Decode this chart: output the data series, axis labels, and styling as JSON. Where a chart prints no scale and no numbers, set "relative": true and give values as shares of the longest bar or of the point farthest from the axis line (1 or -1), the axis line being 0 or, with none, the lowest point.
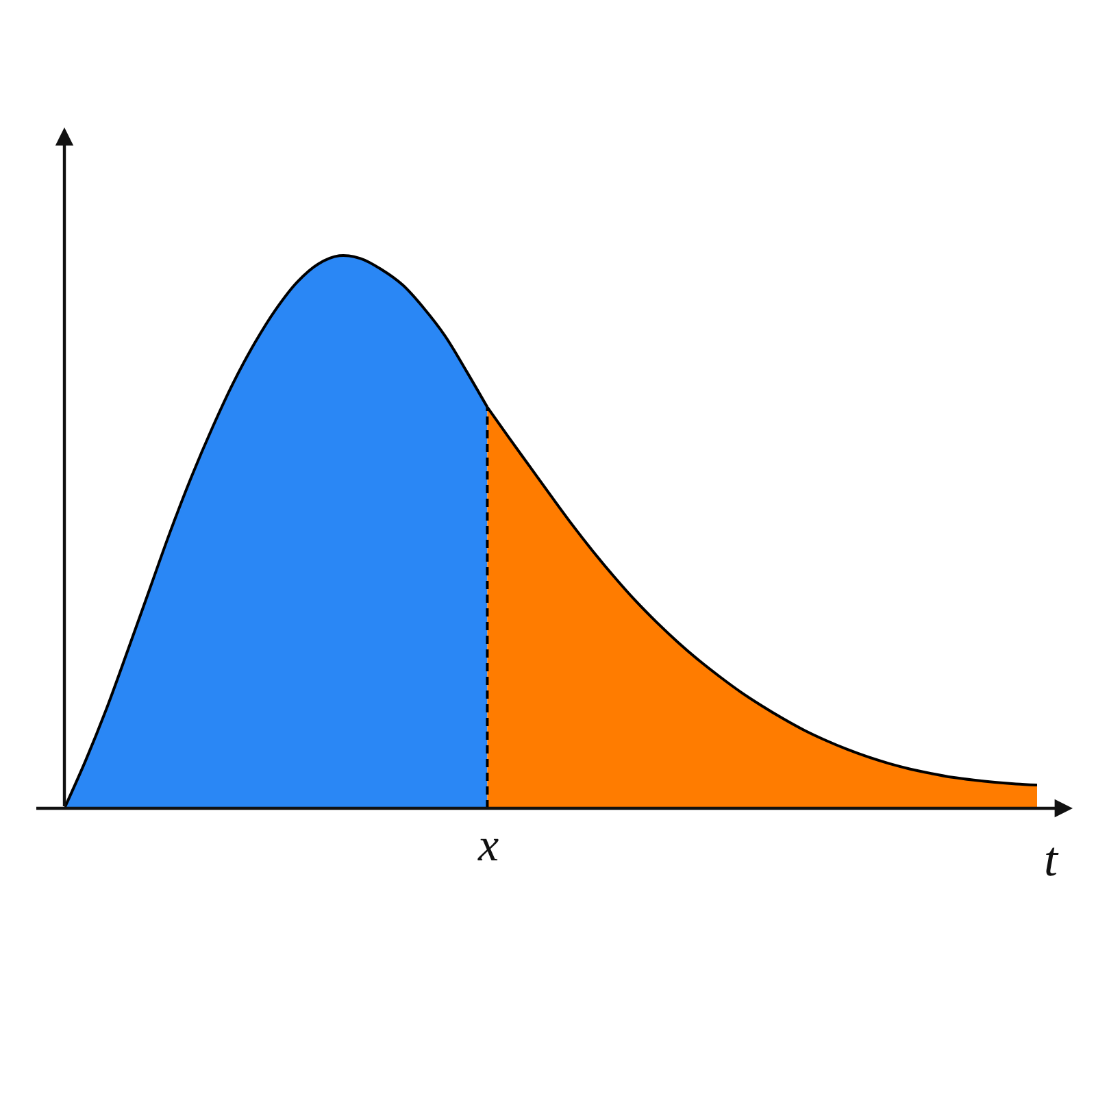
{
  "chart_data": {
    "type": "area",
    "relative": true,
    "xlabel": "t",
    "categories": [
      null,
      null,
      null,
      null,
      null,
      null,
      null,
      null,
      null,
      null,
      null,
      null,
      null,
      null,
      null,
      null,
      null,
      null,
      null,
      null,
      null,
      null,
      null,
      null,
      null,
      null,
      null,
      null,
      null,
      null,
      null,
      null,
      null,
      null,
      null,
      null,
      null,
      null,
      null,
      null,
      null,
      null,
      null,
      null,
      null,
      null,
      null
    ],
    "series": [
      {
        "color": "#2a87f5",
        "values": [
          0,
          0.086,
          0.181,
          0.286,
          0.393,
          0.5,
          0.599,
          0.689,
          0.771,
          0.842,
          0.903,
          0.952,
          0.985,
          1,
          0.995,
          0.975,
          0.947,
          0.905,
          0.855,
          0.792,
          0.726,
          null,
          null,
          null,
          null,
          null,
          null,
          null,
          null,
          null,
          null,
          null,
          null,
          null,
          null,
          null,
          null,
          null,
          null,
          null,
          null,
          null,
          null,
          null,
          null,
          null,
          null
        ]
      },
      {
        "color": "#ff7c00",
        "values": [
          null,
          null,
          null,
          null,
          null,
          null,
          null,
          null,
          null,
          null,
          null,
          null,
          null,
          null,
          null,
          null,
          null,
          null,
          null,
          null,
          0.726,
          0.672,
          0.619,
          0.566,
          0.514,
          0.465,
          0.419,
          0.376,
          0.337,
          0.301,
          0.268,
          0.238,
          0.21,
          0.185,
          0.162,
          0.141,
          0.123,
          0.107,
          0.093,
          0.081,
          0.071,
          0.063,
          0.056,
          0.051,
          0.047,
          0.044,
          0.042
        ]
      }
    ],
    "ref_lines": [
      {
        "axis": "x",
        "value": "x",
        "color": "#000000",
        "line_style": "dashed"
      }
    ]
  }
}
